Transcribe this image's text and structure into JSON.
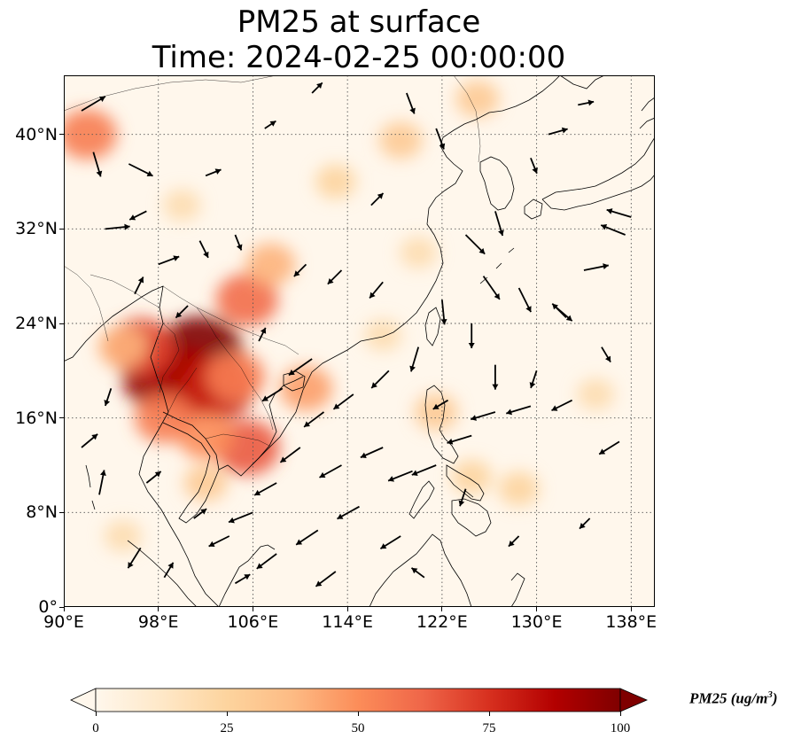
{
  "title": {
    "line1": "PM25 at surface",
    "line2": "Time: 2024-02-25 00:00:00"
  },
  "map": {
    "extent": {
      "lon_min": 90,
      "lon_max": 140,
      "lat_min": 0,
      "lat_max": 45
    },
    "lon_ticks": [
      {
        "value": 90,
        "label": "90°E"
      },
      {
        "value": 98,
        "label": "98°E"
      },
      {
        "value": 106,
        "label": "106°E"
      },
      {
        "value": 114,
        "label": "114°E"
      },
      {
        "value": 122,
        "label": "122°E"
      },
      {
        "value": 130,
        "label": "130°E"
      },
      {
        "value": 138,
        "label": "138°E"
      }
    ],
    "lat_ticks": [
      {
        "value": 0,
        "label": "0°"
      },
      {
        "value": 8,
        "label": "8°N"
      },
      {
        "value": 16,
        "label": "16°N"
      },
      {
        "value": 24,
        "label": "24°N"
      },
      {
        "value": 32,
        "label": "32°N"
      },
      {
        "value": 40,
        "label": "40°N"
      }
    ],
    "gridlines": "dotted",
    "hotspots": [
      {
        "lon": 98.5,
        "lat": 19.5,
        "value": 95
      },
      {
        "lon": 101.5,
        "lat": 21.5,
        "value": 100
      },
      {
        "lon": 100.5,
        "lat": 19.0,
        "value": 90
      },
      {
        "lon": 103.0,
        "lat": 18.5,
        "value": 80
      },
      {
        "lon": 96.5,
        "lat": 22.0,
        "value": 70
      },
      {
        "lon": 104.5,
        "lat": 19.5,
        "value": 55
      },
      {
        "lon": 105.5,
        "lat": 13.5,
        "value": 65
      },
      {
        "lon": 102.0,
        "lat": 14.5,
        "value": 50
      },
      {
        "lon": 98.5,
        "lat": 16.0,
        "value": 55
      },
      {
        "lon": 105.5,
        "lat": 26.0,
        "value": 60
      },
      {
        "lon": 107.5,
        "lat": 29.0,
        "value": 40
      },
      {
        "lon": 110.5,
        "lat": 18.5,
        "value": 45
      },
      {
        "lon": 92.0,
        "lat": 40.0,
        "value": 55
      },
      {
        "lon": 95.0,
        "lat": 22.0,
        "value": 40
      },
      {
        "lon": 102.0,
        "lat": 10.5,
        "value": 30
      },
      {
        "lon": 113.0,
        "lat": 36.0,
        "value": 25
      },
      {
        "lon": 118.5,
        "lat": 39.5,
        "value": 30
      },
      {
        "lon": 125.0,
        "lat": 43.0,
        "value": 30
      },
      {
        "lon": 121.5,
        "lat": 16.5,
        "value": 30
      },
      {
        "lon": 128.5,
        "lat": 10.0,
        "value": 25
      },
      {
        "lon": 135.0,
        "lat": 18.0,
        "value": 20
      },
      {
        "lon": 95.0,
        "lat": 6.0,
        "value": 20
      },
      {
        "lon": 117.0,
        "lat": 23.0,
        "value": 20
      },
      {
        "lon": 120.0,
        "lat": 30.0,
        "value": 20
      },
      {
        "lon": 100.0,
        "lat": 34.0,
        "value": 20
      },
      {
        "lon": 124.5,
        "lat": 11.0,
        "value": 25
      }
    ],
    "wind_vectors": [
      {
        "lon": 91.5,
        "lat": 42.0,
        "u": 1,
        "v": 0.6
      },
      {
        "lon": 92.5,
        "lat": 38.5,
        "u": 0.3,
        "v": -1
      },
      {
        "lon": 95.5,
        "lat": 37.5,
        "u": 1,
        "v": -0.5
      },
      {
        "lon": 97.0,
        "lat": 33.5,
        "u": -0.6,
        "v": -0.3
      },
      {
        "lon": 93.5,
        "lat": 32.0,
        "u": 1,
        "v": 0.1
      },
      {
        "lon": 102.0,
        "lat": 36.5,
        "u": 0.5,
        "v": 0.2
      },
      {
        "lon": 98.0,
        "lat": 29.0,
        "u": 0.8,
        "v": 0.3
      },
      {
        "lon": 101.5,
        "lat": 31.0,
        "u": 0.3,
        "v": -0.6
      },
      {
        "lon": 104.5,
        "lat": 31.5,
        "u": 0.2,
        "v": -0.5
      },
      {
        "lon": 110.5,
        "lat": 29.0,
        "u": -0.4,
        "v": -0.4
      },
      {
        "lon": 113.5,
        "lat": 28.5,
        "u": -0.5,
        "v": -0.5
      },
      {
        "lon": 117.0,
        "lat": 27.5,
        "u": -0.5,
        "v": -0.6
      },
      {
        "lon": 119.0,
        "lat": 43.5,
        "u": 0.3,
        "v": -0.8
      },
      {
        "lon": 121.5,
        "lat": 40.5,
        "u": 0.3,
        "v": -0.8
      },
      {
        "lon": 126.5,
        "lat": 33.5,
        "u": 0.3,
        "v": -1
      },
      {
        "lon": 124.0,
        "lat": 31.5,
        "u": 0.8,
        "v": -0.8
      },
      {
        "lon": 125.5,
        "lat": 28.0,
        "u": 0.7,
        "v": -1
      },
      {
        "lon": 128.5,
        "lat": 27.0,
        "u": 0.5,
        "v": -1
      },
      {
        "lon": 131.5,
        "lat": 25.5,
        "u": 0.7,
        "v": -0.6
      },
      {
        "lon": 134.0,
        "lat": 28.5,
        "u": 1,
        "v": 0.2
      },
      {
        "lon": 137.5,
        "lat": 31.5,
        "u": -1,
        "v": 0.4
      },
      {
        "lon": 138.0,
        "lat": 33.0,
        "u": -1,
        "v": 0.3
      },
      {
        "lon": 122.0,
        "lat": 26.0,
        "u": 0.1,
        "v": -1
      },
      {
        "lon": 124.5,
        "lat": 24.0,
        "u": 0,
        "v": -1
      },
      {
        "lon": 126.5,
        "lat": 20.5,
        "u": 0,
        "v": -1
      },
      {
        "lon": 120.0,
        "lat": 22.0,
        "u": -0.3,
        "v": -1
      },
      {
        "lon": 117.5,
        "lat": 20.0,
        "u": -0.7,
        "v": -0.7
      },
      {
        "lon": 114.5,
        "lat": 18.0,
        "u": -0.8,
        "v": -0.6
      },
      {
        "lon": 112.0,
        "lat": 16.5,
        "u": -0.8,
        "v": -0.6
      },
      {
        "lon": 110.0,
        "lat": 13.5,
        "u": -0.8,
        "v": -0.6
      },
      {
        "lon": 108.0,
        "lat": 10.5,
        "u": -0.9,
        "v": -0.5
      },
      {
        "lon": 106.0,
        "lat": 8.0,
        "u": -1,
        "v": -0.4
      },
      {
        "lon": 113.5,
        "lat": 12.0,
        "u": -0.9,
        "v": -0.5
      },
      {
        "lon": 117.0,
        "lat": 13.5,
        "u": -0.9,
        "v": -0.4
      },
      {
        "lon": 119.5,
        "lat": 11.5,
        "u": -1,
        "v": -0.4
      },
      {
        "lon": 121.5,
        "lat": 12.0,
        "u": -1,
        "v": -0.4
      },
      {
        "lon": 124.5,
        "lat": 14.5,
        "u": -1,
        "v": -0.3
      },
      {
        "lon": 126.5,
        "lat": 16.5,
        "u": -1,
        "v": -0.3
      },
      {
        "lon": 129.5,
        "lat": 17.0,
        "u": -1,
        "v": -0.3
      },
      {
        "lon": 133.0,
        "lat": 17.5,
        "u": -0.8,
        "v": -0.4
      },
      {
        "lon": 137.0,
        "lat": 14.0,
        "u": -0.8,
        "v": -0.5
      },
      {
        "lon": 115.0,
        "lat": 8.5,
        "u": -0.9,
        "v": -0.5
      },
      {
        "lon": 111.5,
        "lat": 6.5,
        "u": -0.9,
        "v": -0.6
      },
      {
        "lon": 108.0,
        "lat": 4.5,
        "u": -0.8,
        "v": -0.6
      },
      {
        "lon": 104.0,
        "lat": 6.0,
        "u": -0.8,
        "v": -0.4
      },
      {
        "lon": 118.5,
        "lat": 6.0,
        "u": -0.8,
        "v": -0.5
      },
      {
        "lon": 113.0,
        "lat": 3.0,
        "u": -0.8,
        "v": -0.6
      },
      {
        "lon": 96.5,
        "lat": 5.0,
        "u": -0.5,
        "v": -0.8
      },
      {
        "lon": 93.0,
        "lat": 9.5,
        "u": 0.2,
        "v": 1
      },
      {
        "lon": 97.0,
        "lat": 10.5,
        "u": 0.5,
        "v": 0.4
      },
      {
        "lon": 91.5,
        "lat": 13.5,
        "u": 0.6,
        "v": 0.5
      },
      {
        "lon": 94.0,
        "lat": 18.5,
        "u": -0.2,
        "v": -0.6
      },
      {
        "lon": 108.5,
        "lat": 18.5,
        "u": -0.8,
        "v": -0.5
      },
      {
        "lon": 111.0,
        "lat": 21.0,
        "u": -1,
        "v": -0.7
      },
      {
        "lon": 106.5,
        "lat": 22.5,
        "u": 0.2,
        "v": 0.4
      },
      {
        "lon": 100.5,
        "lat": 25.5,
        "u": -0.4,
        "v": -0.4
      },
      {
        "lon": 96.0,
        "lat": 26.5,
        "u": 0.3,
        "v": 0.6
      },
      {
        "lon": 132.5,
        "lat": 24.5,
        "u": -0.5,
        "v": 0.5
      },
      {
        "lon": 135.5,
        "lat": 22.0,
        "u": 0.3,
        "v": -0.5
      },
      {
        "lon": 130.0,
        "lat": 20.0,
        "u": -0.2,
        "v": -0.6
      },
      {
        "lon": 122.5,
        "lat": 17.5,
        "u": -0.5,
        "v": -0.3
      },
      {
        "lon": 128.5,
        "lat": 6.0,
        "u": -0.3,
        "v": -0.3
      },
      {
        "lon": 134.5,
        "lat": 7.5,
        "u": -0.3,
        "v": -0.3
      },
      {
        "lon": 124.0,
        "lat": 10.0,
        "u": -0.2,
        "v": -0.6
      },
      {
        "lon": 101.0,
        "lat": 7.5,
        "u": 0.4,
        "v": 0.3
      },
      {
        "lon": 98.5,
        "lat": 2.5,
        "u": 0.3,
        "v": 0.5
      },
      {
        "lon": 104.5,
        "lat": 2.0,
        "u": 0.5,
        "v": 0.3
      },
      {
        "lon": 120.5,
        "lat": 2.5,
        "u": -0.4,
        "v": 0.3
      },
      {
        "lon": 133.5,
        "lat": 42.5,
        "u": 0.5,
        "v": 0.1
      },
      {
        "lon": 129.5,
        "lat": 38.0,
        "u": 0.2,
        "v": -0.5
      },
      {
        "lon": 131.0,
        "lat": 40.0,
        "u": 0.7,
        "v": 0.2
      },
      {
        "lon": 107.0,
        "lat": 40.5,
        "u": 0.3,
        "v": 0.2
      },
      {
        "lon": 111.0,
        "lat": 43.5,
        "u": 0.3,
        "v": 0.3
      },
      {
        "lon": 116.0,
        "lat": 34.0,
        "u": 0.4,
        "v": 0.4
      }
    ]
  },
  "colorbar": {
    "title": "PM25 (ug/m",
    "title_sup": "3",
    "title_end": ")",
    "min": 0,
    "max": 100,
    "extend": "both",
    "colormap": "OrRd",
    "ticks": [
      {
        "value": 0,
        "label": "0"
      },
      {
        "value": 25,
        "label": "25"
      },
      {
        "value": 50,
        "label": "50"
      },
      {
        "value": 75,
        "label": "75"
      },
      {
        "value": 100,
        "label": "100"
      }
    ],
    "stops": [
      "#fff7ec",
      "#fee8c8",
      "#fdd49e",
      "#fdbb84",
      "#fc8d59",
      "#ef6548",
      "#d7301f",
      "#b30000",
      "#7f0000"
    ]
  },
  "colors": {
    "background": "#fff7ec",
    "coastline": "#000000",
    "grid": "#666666",
    "vector": "#000000"
  }
}
